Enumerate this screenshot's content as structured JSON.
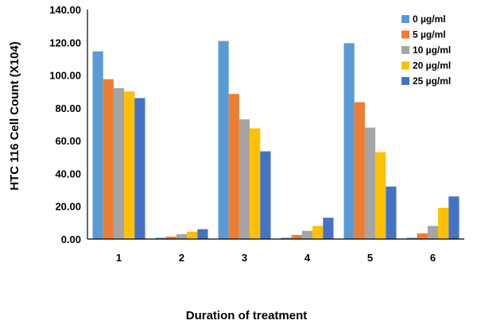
{
  "chart_data": {
    "type": "bar",
    "categories": [
      "1",
      "2",
      "3",
      "4",
      "5",
      "6"
    ],
    "xlabel": "Duration of treatment",
    "ylabel": "HTC 116 Cell Count (X104)",
    "ylim": [
      0,
      140
    ],
    "yticks": [
      "0.00",
      "20.00",
      "40.00",
      "60.00",
      "80.00",
      "100.00",
      "120.00",
      "140.00"
    ],
    "grid": false,
    "legend_position": "top-right",
    "series": [
      {
        "name": "0 µg/ml",
        "color": "#5b9bd5",
        "values": [
          114.5,
          0.8,
          120.8,
          0.8,
          119.5,
          0.8
        ]
      },
      {
        "name": "5 µg/ml",
        "color": "#ed7d31",
        "values": [
          97.5,
          1.5,
          88.5,
          2.5,
          83.5,
          3.5
        ]
      },
      {
        "name": "10 µg/ml",
        "color": "#a5a5a5",
        "values": [
          92.0,
          3.0,
          73.0,
          5.0,
          68.0,
          8.0
        ]
      },
      {
        "name": "20 µg/ml",
        "color": "#ffc000",
        "values": [
          90.0,
          4.5,
          67.5,
          8.0,
          53.0,
          19.0
        ]
      },
      {
        "name": "25 µg/ml",
        "color": "#4472c4",
        "values": [
          86.0,
          6.0,
          53.5,
          13.0,
          32.0,
          26.0
        ]
      }
    ]
  }
}
